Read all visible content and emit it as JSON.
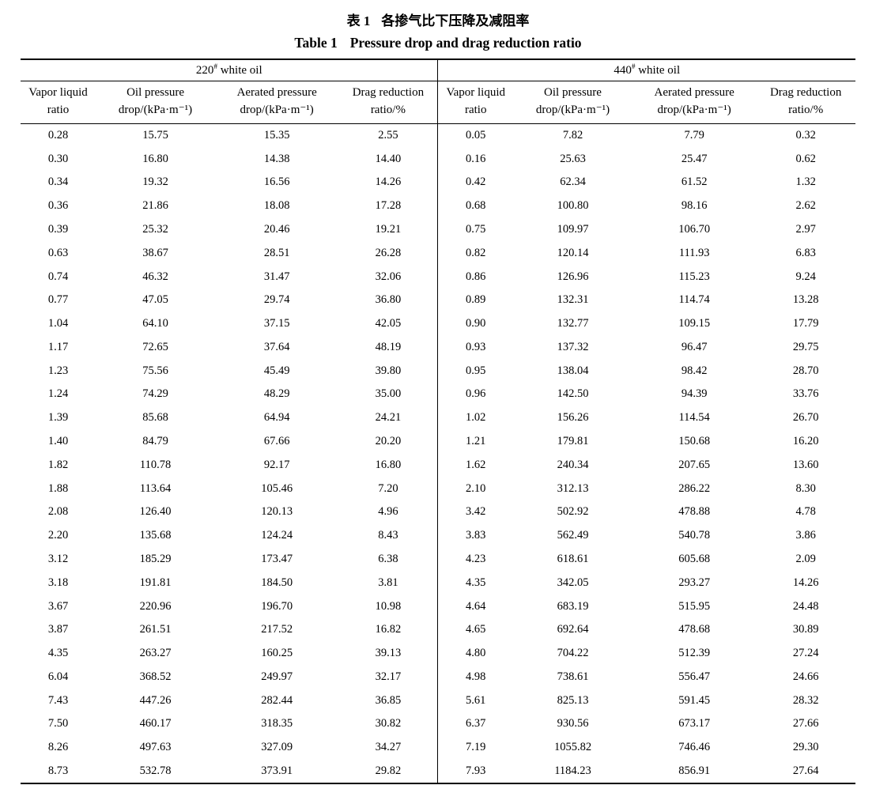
{
  "title": {
    "cn_label": "表 1",
    "cn_text": "各掺气比下压降及减阻率",
    "en_label": "Table 1",
    "en_text": "Pressure drop and drag reduction ratio"
  },
  "table": {
    "groups": [
      {
        "num": "220",
        "sup": "#",
        "rest": " white oil"
      },
      {
        "num": "440",
        "sup": "#",
        "rest": " white oil"
      }
    ],
    "columns": [
      {
        "line1": "Vapor liquid",
        "line2": "ratio"
      },
      {
        "line1": "Oil pressure",
        "line2": "drop/(kPa·m⁻¹)"
      },
      {
        "line1": "Aerated pressure",
        "line2": "drop/(kPa·m⁻¹)"
      },
      {
        "line1": "Drag reduction",
        "line2": "ratio/%"
      },
      {
        "line1": "Vapor liquid",
        "line2": "ratio"
      },
      {
        "line1": "Oil pressure",
        "line2": "drop/(kPa·m⁻¹)"
      },
      {
        "line1": "Aerated pressure",
        "line2": "drop/(kPa·m⁻¹)"
      },
      {
        "line1": "Drag reduction",
        "line2": "ratio/%"
      }
    ],
    "rows": [
      [
        "0.28",
        "15.75",
        "15.35",
        "2.55",
        "0.05",
        "7.82",
        "7.79",
        "0.32"
      ],
      [
        "0.30",
        "16.80",
        "14.38",
        "14.40",
        "0.16",
        "25.63",
        "25.47",
        "0.62"
      ],
      [
        "0.34",
        "19.32",
        "16.56",
        "14.26",
        "0.42",
        "62.34",
        "61.52",
        "1.32"
      ],
      [
        "0.36",
        "21.86",
        "18.08",
        "17.28",
        "0.68",
        "100.80",
        "98.16",
        "2.62"
      ],
      [
        "0.39",
        "25.32",
        "20.46",
        "19.21",
        "0.75",
        "109.97",
        "106.70",
        "2.97"
      ],
      [
        "0.63",
        "38.67",
        "28.51",
        "26.28",
        "0.82",
        "120.14",
        "111.93",
        "6.83"
      ],
      [
        "0.74",
        "46.32",
        "31.47",
        "32.06",
        "0.86",
        "126.96",
        "115.23",
        "9.24"
      ],
      [
        "0.77",
        "47.05",
        "29.74",
        "36.80",
        "0.89",
        "132.31",
        "114.74",
        "13.28"
      ],
      [
        "1.04",
        "64.10",
        "37.15",
        "42.05",
        "0.90",
        "132.77",
        "109.15",
        "17.79"
      ],
      [
        "1.17",
        "72.65",
        "37.64",
        "48.19",
        "0.93",
        "137.32",
        "96.47",
        "29.75"
      ],
      [
        "1.23",
        "75.56",
        "45.49",
        "39.80",
        "0.95",
        "138.04",
        "98.42",
        "28.70"
      ],
      [
        "1.24",
        "74.29",
        "48.29",
        "35.00",
        "0.96",
        "142.50",
        "94.39",
        "33.76"
      ],
      [
        "1.39",
        "85.68",
        "64.94",
        "24.21",
        "1.02",
        "156.26",
        "114.54",
        "26.70"
      ],
      [
        "1.40",
        "84.79",
        "67.66",
        "20.20",
        "1.21",
        "179.81",
        "150.68",
        "16.20"
      ],
      [
        "1.82",
        "110.78",
        "92.17",
        "16.80",
        "1.62",
        "240.34",
        "207.65",
        "13.60"
      ],
      [
        "1.88",
        "113.64",
        "105.46",
        "7.20",
        "2.10",
        "312.13",
        "286.22",
        "8.30"
      ],
      [
        "2.08",
        "126.40",
        "120.13",
        "4.96",
        "3.42",
        "502.92",
        "478.88",
        "4.78"
      ],
      [
        "2.20",
        "135.68",
        "124.24",
        "8.43",
        "3.83",
        "562.49",
        "540.78",
        "3.86"
      ],
      [
        "3.12",
        "185.29",
        "173.47",
        "6.38",
        "4.23",
        "618.61",
        "605.68",
        "2.09"
      ],
      [
        "3.18",
        "191.81",
        "184.50",
        "3.81",
        "4.35",
        "342.05",
        "293.27",
        "14.26"
      ],
      [
        "3.67",
        "220.96",
        "196.70",
        "10.98",
        "4.64",
        "683.19",
        "515.95",
        "24.48"
      ],
      [
        "3.87",
        "261.51",
        "217.52",
        "16.82",
        "4.65",
        "692.64",
        "478.68",
        "30.89"
      ],
      [
        "4.35",
        "263.27",
        "160.25",
        "39.13",
        "4.80",
        "704.22",
        "512.39",
        "27.24"
      ],
      [
        "6.04",
        "368.52",
        "249.97",
        "32.17",
        "4.98",
        "738.61",
        "556.47",
        "24.66"
      ],
      [
        "7.43",
        "447.26",
        "282.44",
        "36.85",
        "5.61",
        "825.13",
        "591.45",
        "28.32"
      ],
      [
        "7.50",
        "460.17",
        "318.35",
        "30.82",
        "6.37",
        "930.56",
        "673.17",
        "27.66"
      ],
      [
        "8.26",
        "497.63",
        "327.09",
        "34.27",
        "7.19",
        "1055.82",
        "746.46",
        "29.30"
      ],
      [
        "8.73",
        "532.78",
        "373.91",
        "29.82",
        "7.93",
        "1184.23",
        "856.91",
        "27.64"
      ]
    ]
  }
}
